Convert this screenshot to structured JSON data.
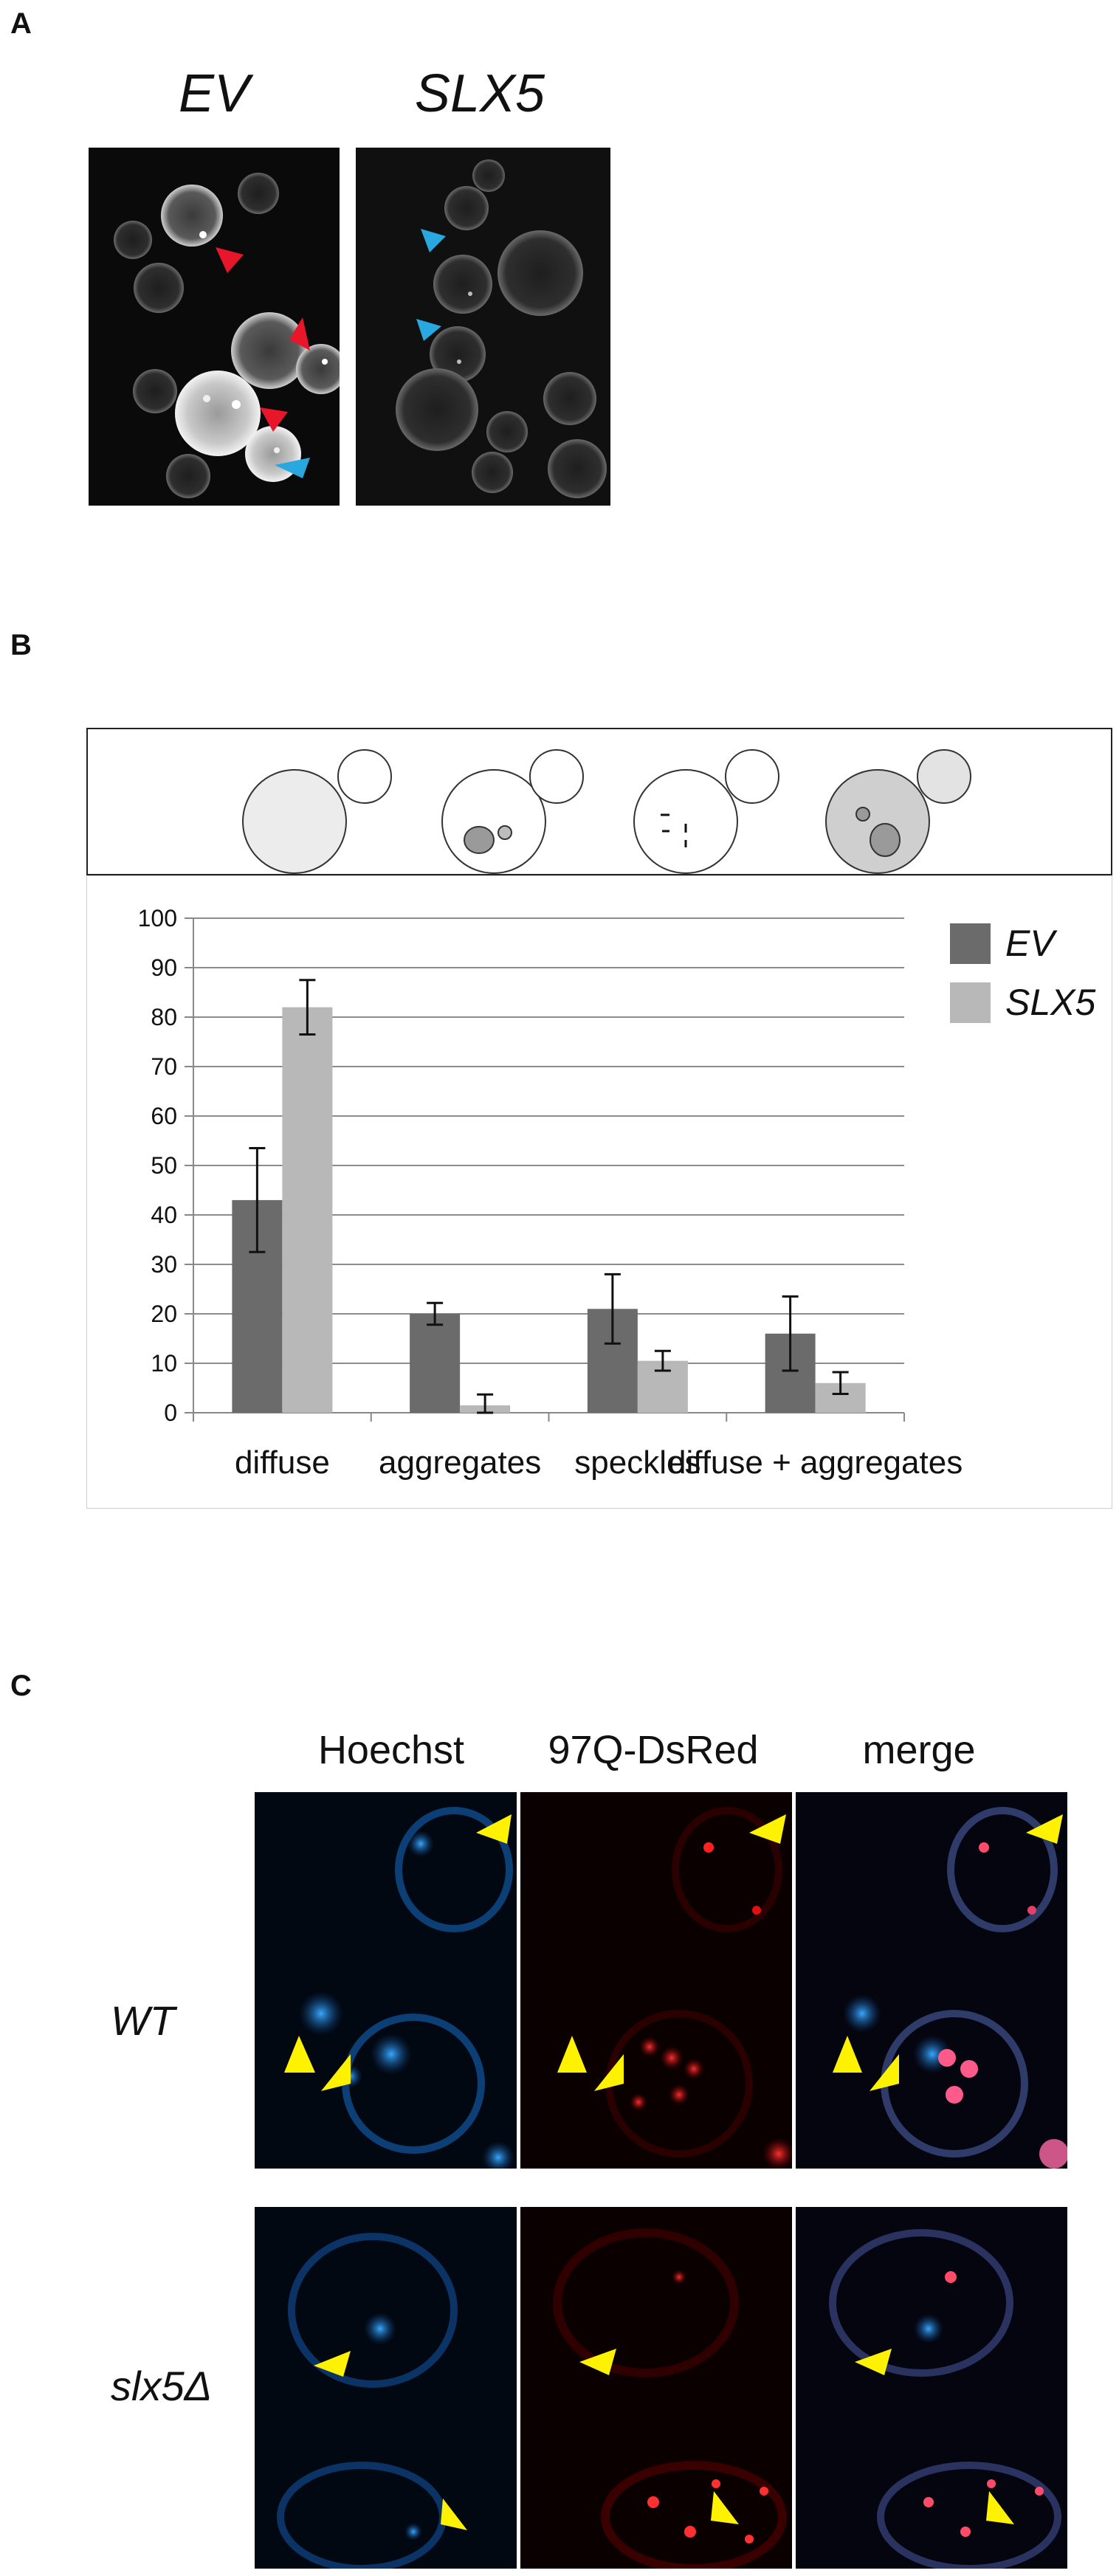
{
  "panels": {
    "a": {
      "letter": "A",
      "titles": [
        "EV",
        "SLX5"
      ]
    },
    "b": {
      "letter": "B",
      "schematic_labels": []
    },
    "c": {
      "letter": "C",
      "column_headers": [
        "Hoechst",
        "97Q-DsRed",
        "merge"
      ],
      "row_labels": [
        "WT",
        "slx5Δ"
      ]
    }
  },
  "colors": {
    "ev_bar": "#6b6b6b",
    "slx5_bar": "#b8b8b8",
    "red_arrow": "#e8162a",
    "blue_arrow": "#29a8e0",
    "yellow_arrow": "#fff200"
  },
  "chart_data": {
    "type": "bar",
    "categories": [
      "diffuse",
      "aggregates",
      "speckles",
      "diffuse + aggregates"
    ],
    "series": [
      {
        "name": "EV",
        "values": [
          43,
          20,
          21,
          16
        ],
        "errors": [
          10.5,
          2.2,
          7,
          7.5
        ],
        "color": "#6b6b6b"
      },
      {
        "name": "SLX5",
        "values": [
          82,
          1.5,
          10.5,
          6
        ],
        "errors": [
          5.5,
          2.2,
          2,
          2.2
        ],
        "color": "#b8b8b8"
      }
    ],
    "ylim": [
      0,
      100
    ],
    "yticks": [
      "0",
      "10",
      "20",
      "30",
      "40",
      "50",
      "60",
      "70",
      "80",
      "90",
      "100"
    ],
    "grid": true,
    "legend": "top-right",
    "xlabel": "",
    "ylabel": "",
    "title": ""
  }
}
